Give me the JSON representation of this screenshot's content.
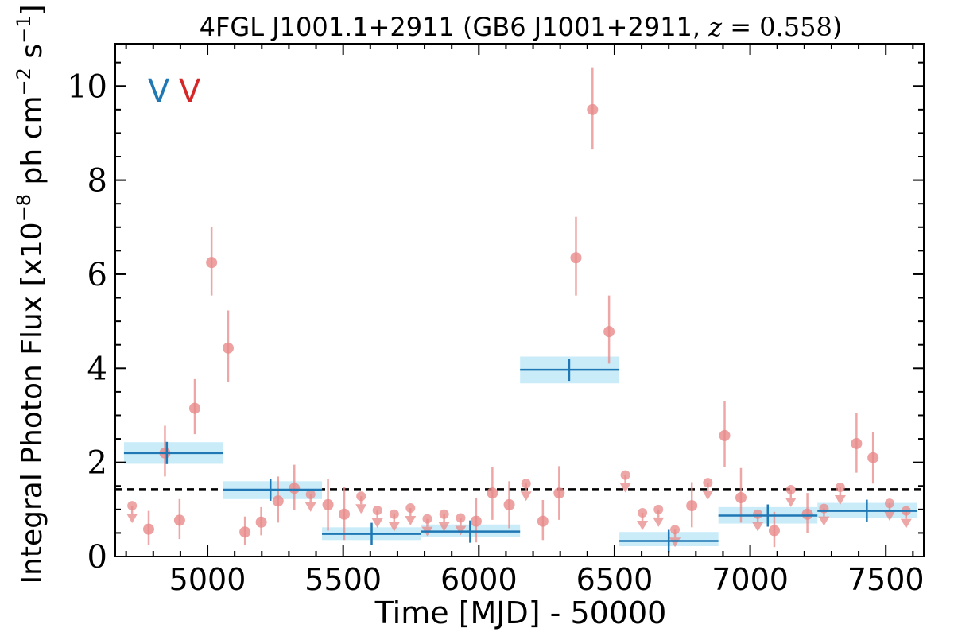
{
  "chart_data": {
    "type": "scatter",
    "title": "4FGL J1001.1+2911 (GB6 J1001+2911, z = 0.558)",
    "xlabel": "Time [MJD] - 50000",
    "ylabel": "Integral Photon Flux [x10⁻⁸ ph cm⁻² s⁻¹]",
    "xlim": [
      4660,
      7640
    ],
    "ylim": [
      0,
      10.9
    ],
    "x_ticks": [
      5000,
      5500,
      6000,
      6500,
      7000,
      7500
    ],
    "y_ticks": [
      0,
      2,
      4,
      6,
      8,
      10
    ],
    "baseline_flux": 1.43,
    "colors": {
      "points": "#e88a8a",
      "bins": "#1f77b4",
      "bin_band": "#c9ecf8",
      "baseline": "#000000"
    },
    "annotations": [
      {
        "text": "V",
        "color": "#1f77b4"
      },
      {
        "text": "V",
        "color": "#d62728"
      }
    ],
    "bins": [
      {
        "x0": 4692,
        "x1": 5056,
        "center": 4850,
        "y": 2.2,
        "band": [
          1.97,
          2.43
        ]
      },
      {
        "x0": 5056,
        "x1": 5422,
        "center": 5232,
        "y": 1.42,
        "band": [
          1.22,
          1.6
        ]
      },
      {
        "x0": 5422,
        "x1": 5787,
        "center": 5605,
        "y": 0.48,
        "band": [
          0.35,
          0.62
        ]
      },
      {
        "x0": 5787,
        "x1": 6152,
        "center": 5968,
        "y": 0.53,
        "band": [
          0.42,
          0.68
        ]
      },
      {
        "x0": 6152,
        "x1": 6518,
        "center": 6333,
        "y": 3.97,
        "band": [
          3.68,
          4.25
        ]
      },
      {
        "x0": 6518,
        "x1": 6883,
        "center": 6700,
        "y": 0.33,
        "band": [
          0.22,
          0.52
        ]
      },
      {
        "x0": 6883,
        "x1": 7248,
        "center": 7065,
        "y": 0.87,
        "band": [
          0.7,
          1.05
        ]
      },
      {
        "x0": 7248,
        "x1": 7614,
        "center": 7430,
        "y": 0.97,
        "band": [
          0.82,
          1.14
        ]
      }
    ],
    "detections": [
      {
        "x": 4783,
        "y": 0.58,
        "lo": 0.25,
        "hi": 0.97
      },
      {
        "x": 4843,
        "y": 2.2,
        "lo": 1.7,
        "hi": 2.78
      },
      {
        "x": 4897,
        "y": 0.77,
        "lo": 0.37,
        "hi": 1.22
      },
      {
        "x": 4953,
        "y": 3.15,
        "lo": 2.6,
        "hi": 3.77
      },
      {
        "x": 5015,
        "y": 6.25,
        "lo": 5.55,
        "hi": 7.0
      },
      {
        "x": 5076,
        "y": 4.43,
        "lo": 3.7,
        "hi": 5.23
      },
      {
        "x": 5138,
        "y": 0.52,
        "lo": 0.25,
        "hi": 0.85
      },
      {
        "x": 5198,
        "y": 0.73,
        "lo": 0.45,
        "hi": 1.05
      },
      {
        "x": 5260,
        "y": 1.18,
        "lo": 0.72,
        "hi": 1.7
      },
      {
        "x": 5320,
        "y": 1.45,
        "lo": 0.98,
        "hi": 1.95
      },
      {
        "x": 5444,
        "y": 1.1,
        "lo": 0.55,
        "hi": 1.65
      },
      {
        "x": 5504,
        "y": 0.9,
        "lo": 0.35,
        "hi": 1.48
      },
      {
        "x": 5990,
        "y": 0.75,
        "lo": 0.3,
        "hi": 1.25
      },
      {
        "x": 6050,
        "y": 1.35,
        "lo": 0.78,
        "hi": 1.9
      },
      {
        "x": 6112,
        "y": 1.1,
        "lo": 0.6,
        "hi": 1.6
      },
      {
        "x": 6236,
        "y": 0.75,
        "lo": 0.35,
        "hi": 1.2
      },
      {
        "x": 6296,
        "y": 1.35,
        "lo": 0.78,
        "hi": 1.92
      },
      {
        "x": 6358,
        "y": 6.35,
        "lo": 5.55,
        "hi": 7.22
      },
      {
        "x": 6419,
        "y": 9.5,
        "lo": 8.65,
        "hi": 10.4
      },
      {
        "x": 6480,
        "y": 4.78,
        "lo": 4.1,
        "hi": 5.55
      },
      {
        "x": 6785,
        "y": 1.08,
        "lo": 0.62,
        "hi": 1.58
      },
      {
        "x": 6906,
        "y": 2.57,
        "lo": 1.9,
        "hi": 3.3
      },
      {
        "x": 6966,
        "y": 1.25,
        "lo": 0.72,
        "hi": 1.88
      },
      {
        "x": 7089,
        "y": 0.55,
        "lo": 0.2,
        "hi": 0.95
      },
      {
        "x": 7211,
        "y": 0.9,
        "lo": 0.5,
        "hi": 1.35
      },
      {
        "x": 7392,
        "y": 2.4,
        "lo": 1.78,
        "hi": 3.05
      },
      {
        "x": 7453,
        "y": 2.1,
        "lo": 1.55,
        "hi": 2.65
      }
    ],
    "upper_limits": [
      {
        "x": 4722,
        "y": 1.08
      },
      {
        "x": 5380,
        "y": 1.32
      },
      {
        "x": 5566,
        "y": 1.28
      },
      {
        "x": 5626,
        "y": 0.98
      },
      {
        "x": 5688,
        "y": 0.9
      },
      {
        "x": 5748,
        "y": 1.03
      },
      {
        "x": 5810,
        "y": 0.8
      },
      {
        "x": 5872,
        "y": 0.9
      },
      {
        "x": 5933,
        "y": 0.82
      },
      {
        "x": 6174,
        "y": 1.55
      },
      {
        "x": 6540,
        "y": 1.73
      },
      {
        "x": 6603,
        "y": 0.93
      },
      {
        "x": 6662,
        "y": 1.0
      },
      {
        "x": 6723,
        "y": 0.57
      },
      {
        "x": 6844,
        "y": 1.57
      },
      {
        "x": 7028,
        "y": 0.9
      },
      {
        "x": 7150,
        "y": 1.42
      },
      {
        "x": 7272,
        "y": 1.02
      },
      {
        "x": 7332,
        "y": 1.47
      },
      {
        "x": 7514,
        "y": 1.13
      },
      {
        "x": 7575,
        "y": 0.97
      }
    ]
  }
}
